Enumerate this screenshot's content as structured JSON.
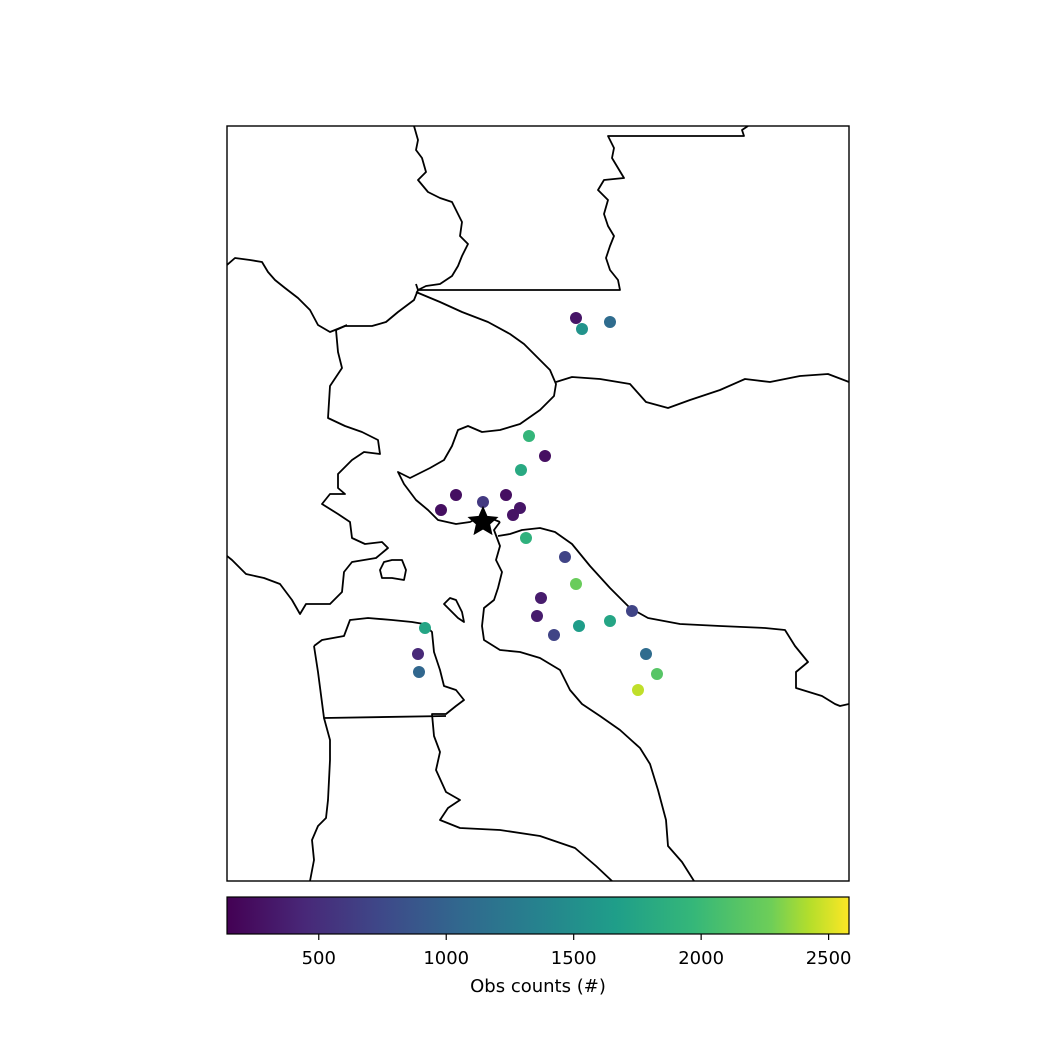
{
  "map": {
    "station_marker": "star",
    "basemap": "coastlines",
    "colormap": "viridis"
  },
  "chart_data": {
    "type": "scatter",
    "title": "",
    "xlabel": "",
    "ylabel": "",
    "colorbar": {
      "label": "Obs counts (#)",
      "range": [
        140,
        2580
      ],
      "ticks": [
        500,
        1000,
        1500,
        2000,
        2500
      ],
      "tick_labels": [
        "500",
        "1000",
        "1500",
        "2000",
        "2500"
      ]
    },
    "points": [
      {
        "count": 300
      },
      {
        "count": 1550
      },
      {
        "count": 1100
      },
      {
        "count": 1950
      },
      {
        "count": 250
      },
      {
        "count": 1800
      },
      {
        "count": 250
      },
      {
        "count": 250
      },
      {
        "count": 600
      },
      {
        "count": 250
      },
      {
        "count": 300
      },
      {
        "count": 280
      },
      {
        "count": 1900
      },
      {
        "count": 700
      },
      {
        "count": 2250
      },
      {
        "count": 350
      },
      {
        "count": 350
      },
      {
        "count": 700
      },
      {
        "count": 1750
      },
      {
        "count": 1050
      },
      {
        "count": 450
      },
      {
        "count": 1650
      },
      {
        "count": 1750
      },
      {
        "count": 700
      },
      {
        "count": 1100
      },
      {
        "count": 2150
      },
      {
        "count": 2450
      }
    ]
  }
}
